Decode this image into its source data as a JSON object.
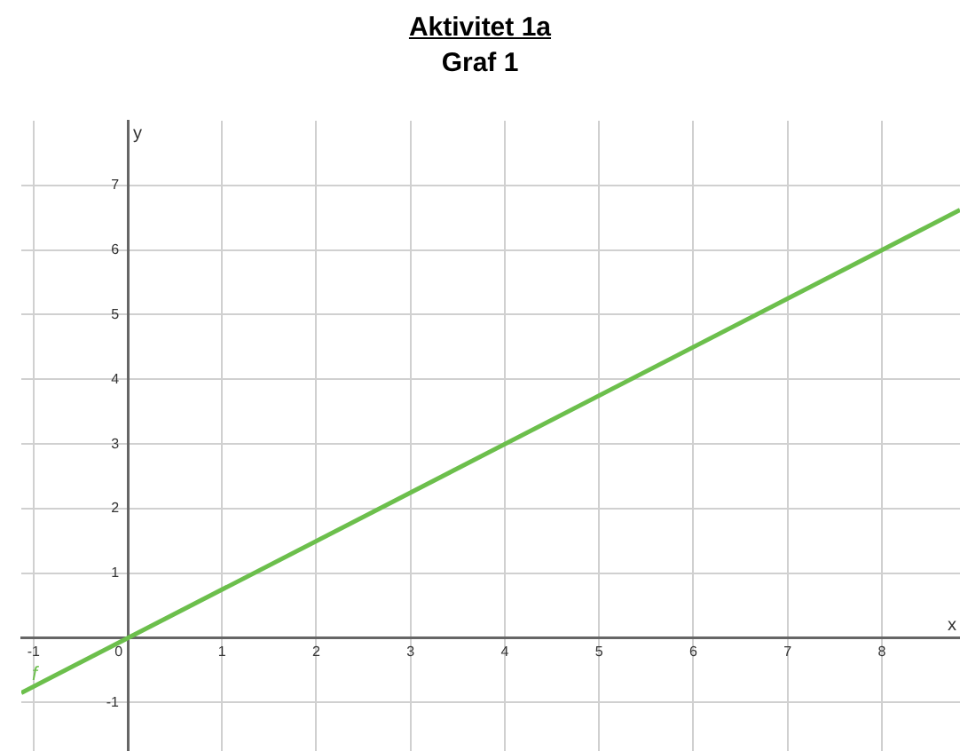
{
  "chart_data": {
    "type": "line",
    "title": "Aktivitet 1a",
    "subtitle": "Graf 1",
    "xlabel": "x",
    "ylabel": "y",
    "series": [
      {
        "name": "f",
        "color": "#6cbf4c",
        "x": [
          -1.13,
          8.83
        ],
        "values": [
          -0.85,
          6.62
        ]
      }
    ],
    "xlim": [
      -1.13,
      8.83
    ],
    "ylim": [
      -1.75,
      8
    ],
    "xticks": [
      -1,
      {
        "value": 0,
        "label": "0"
      },
      1,
      2,
      3,
      4,
      5,
      6,
      7,
      8
    ],
    "yticks": [
      -1,
      {
        "value": 0,
        "label": null
      },
      1,
      2,
      3,
      4,
      5,
      6,
      7
    ],
    "grid": true,
    "legend": false,
    "marker": "none",
    "line_style": "solid"
  }
}
